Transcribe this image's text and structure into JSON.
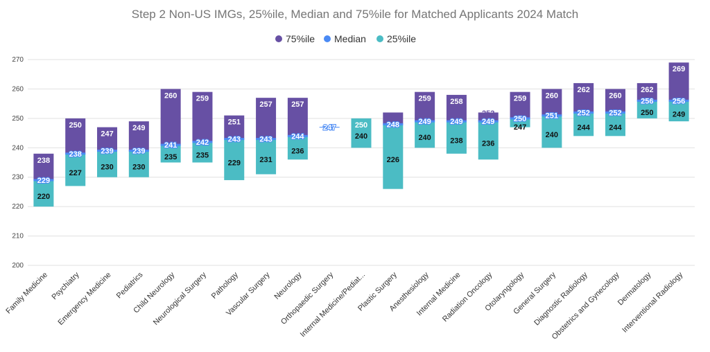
{
  "chart_data": {
    "type": "bar",
    "subtype": "floating-range",
    "title": "Step 2 Non-US IMGs, 25%ile, Median and 75%ile for Matched Applicants 2024 Match",
    "xlabel": "",
    "ylabel": "",
    "ylim": [
      200,
      270
    ],
    "yticks": [
      200,
      210,
      220,
      230,
      240,
      250,
      260,
      270
    ],
    "grid": true,
    "legend_position": "top",
    "legend": [
      "75%ile",
      "Median",
      "25%ile"
    ],
    "colors": {
      "p75": "#6750a4",
      "median": "#4a8af4",
      "p25": "#4bbcc4"
    },
    "categories": [
      "Family Medicine",
      "Psychiatry",
      "Emergency Medicine",
      "Pediatrics",
      "Child Neurology",
      "Neurological Surgery",
      "Pathology",
      "Vascular Surgery",
      "Neurology",
      "Orthopaedic Surgery",
      "Internal Medicine/Pediat...",
      "Plastic Surgery",
      "Anesthesiology",
      "Internal Medicine",
      "Radiation Oncology",
      "Otolaryngology",
      "General Surgery",
      "Diagnostic Radiology",
      "Obstetrics and Gynecology",
      "Dermatology",
      "Interventional Radiology"
    ],
    "series": [
      {
        "name": "75%ile",
        "values": [
          238,
          250,
          247,
          249,
          260,
          259,
          251,
          257,
          257,
          null,
          250,
          252,
          259,
          258,
          252,
          259,
          260,
          262,
          260,
          262,
          269
        ]
      },
      {
        "name": "Median",
        "values": [
          229,
          238,
          239,
          239,
          241,
          242,
          243,
          243,
          244,
          247,
          null,
          248,
          249,
          249,
          249,
          250,
          251,
          252,
          252,
          256,
          256
        ]
      },
      {
        "name": "25%ile",
        "values": [
          220,
          227,
          230,
          230,
          235,
          235,
          229,
          231,
          236,
          null,
          240,
          226,
          240,
          238,
          236,
          247,
          240,
          244,
          244,
          250,
          249
        ]
      }
    ]
  }
}
